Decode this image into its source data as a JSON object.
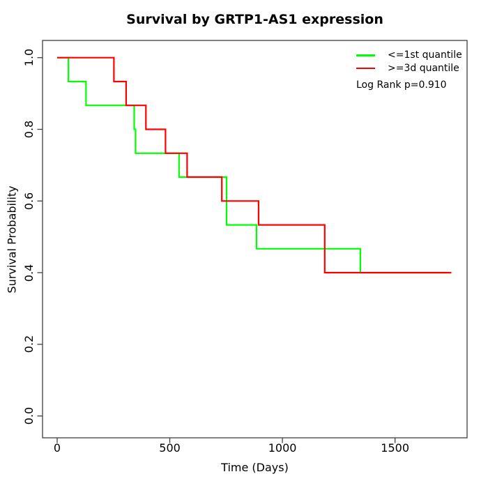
{
  "title": "Survival by GRTP1-AS1 expression",
  "axes": {
    "x": {
      "label": "Time (Days)",
      "ticks": [
        "0",
        "500",
        "1000",
        "1500"
      ]
    },
    "y": {
      "label": "Survival Probability",
      "ticks": [
        "0.0",
        "0.2",
        "0.4",
        "0.6",
        "0.8",
        "1.0"
      ]
    }
  },
  "legend": {
    "entries": [
      {
        "label": "<=1st quantile",
        "color": "#00ff00"
      },
      {
        "label": ">=3d quantile",
        "color": "#ff0000"
      }
    ],
    "note": "Log Rank p=0.910"
  },
  "chart_data": {
    "type": "line",
    "subtype": "kaplan-meier-step",
    "title": "Survival by GRTP1-AS1 expression",
    "xlabel": "Time (Days)",
    "ylabel": "Survival Probability",
    "xlim": [
      0,
      1800
    ],
    "ylim": [
      0,
      1
    ],
    "x_ticks": [
      0,
      500,
      1000,
      1500
    ],
    "y_ticks": [
      0.0,
      0.2,
      0.4,
      0.6,
      0.8,
      1.0
    ],
    "grid": false,
    "legend_position": "top-right",
    "annotation": "Log Rank p=0.910",
    "series": [
      {
        "name": "<=1st quantile",
        "color": "#00ff00",
        "start": [
          0,
          1.0
        ],
        "steps": [
          [
            50,
            0.9333
          ],
          [
            128,
            0.8667
          ],
          [
            342,
            0.8
          ],
          [
            348,
            0.7333
          ],
          [
            541,
            0.6667
          ],
          [
            752,
            0.5333
          ],
          [
            885,
            0.4667
          ],
          [
            1346,
            0.4
          ]
        ],
        "end_t": 1730
      },
      {
        "name": ">=3d quantile",
        "color": "#ff0000",
        "start": [
          0,
          1.0
        ],
        "steps": [
          [
            252,
            0.9333
          ],
          [
            306,
            0.8667
          ],
          [
            394,
            0.8
          ],
          [
            481,
            0.7333
          ],
          [
            577,
            0.6667
          ],
          [
            731,
            0.6
          ],
          [
            894,
            0.5333
          ],
          [
            1188,
            0.4
          ]
        ],
        "end_t": 1750
      }
    ]
  }
}
